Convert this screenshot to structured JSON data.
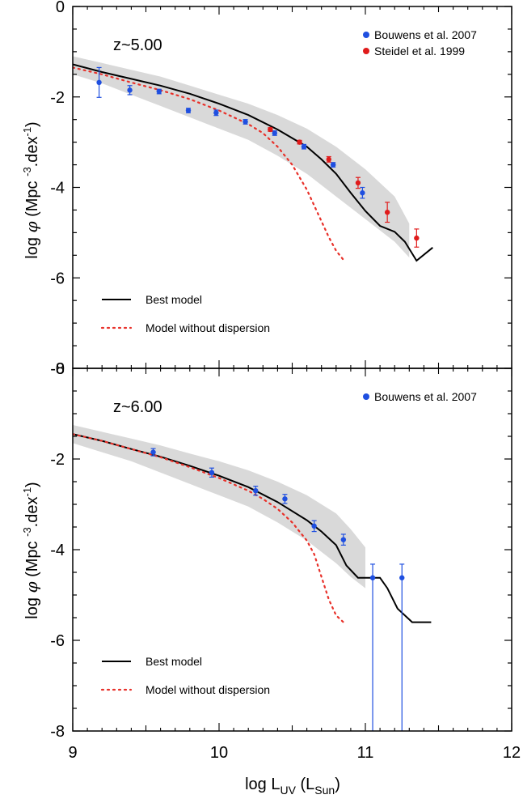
{
  "figure": {
    "xlabel": {
      "main": "log L",
      "sub1": "UV",
      "mid": " (L",
      "sub2": "Sun",
      "end": ")"
    },
    "ylabel": {
      "pre": "log ",
      "phi": "φ",
      "mid": " (Mpc ",
      "sup": "-3",
      "post": ".dex",
      "sup2": "-1",
      "end": ")"
    }
  },
  "colors": {
    "band": "#d9d9d9",
    "best_model": "#000000",
    "no_dispersion": "#e8312a",
    "bouwens": "#1f4fe0",
    "steidel": "#e01b1b"
  },
  "chart_data": [
    {
      "type": "line",
      "panel_label": "z~5.00",
      "xlim": [
        9,
        12
      ],
      "ylim": [
        -8,
        0
      ],
      "x_ticks": [
        9,
        10,
        11,
        12
      ],
      "y_ticks": [
        -8,
        -6,
        -4,
        -2,
        0
      ],
      "legend": [
        {
          "label": "Bouwens et al. 2007",
          "kind": "point",
          "color_key": "bouwens"
        },
        {
          "label": "Steidel et al. 1999",
          "kind": "point",
          "color_key": "steidel"
        }
      ],
      "line_legend": [
        {
          "label": "Best model",
          "kind": "solid",
          "color_key": "best_model"
        },
        {
          "label": "Model without dispersion",
          "kind": "dotted",
          "color_key": "no_dispersion"
        }
      ],
      "band": {
        "x": [
          9.0,
          9.2,
          9.4,
          9.6,
          9.8,
          10.0,
          10.2,
          10.4,
          10.6,
          10.8,
          11.0,
          11.2,
          11.3
        ],
        "upper": [
          -1.1,
          -1.25,
          -1.4,
          -1.55,
          -1.75,
          -1.95,
          -2.15,
          -2.4,
          -2.7,
          -3.1,
          -3.6,
          -4.2,
          -4.8
        ],
        "lower": [
          -1.5,
          -1.7,
          -1.95,
          -2.2,
          -2.45,
          -2.7,
          -2.95,
          -3.3,
          -3.7,
          -4.2,
          -4.7,
          -5.2,
          -5.55
        ]
      },
      "series": [
        {
          "name": "Best model",
          "style": "solid",
          "x": [
            9.0,
            9.2,
            9.4,
            9.6,
            9.8,
            10.0,
            10.2,
            10.4,
            10.6,
            10.7,
            10.8,
            10.9,
            11.0,
            11.1,
            11.2,
            11.27,
            11.35,
            11.46
          ],
          "y": [
            -1.28,
            -1.45,
            -1.6,
            -1.75,
            -1.93,
            -2.15,
            -2.4,
            -2.72,
            -3.1,
            -3.38,
            -3.7,
            -4.12,
            -4.52,
            -4.85,
            -4.98,
            -5.2,
            -5.62,
            -5.33
          ]
        },
        {
          "name": "Model without dispersion",
          "style": "dotted",
          "x": [
            9.0,
            9.2,
            9.4,
            9.6,
            9.8,
            10.0,
            10.2,
            10.3,
            10.4,
            10.5,
            10.6,
            10.65,
            10.7,
            10.75,
            10.8,
            10.85
          ],
          "y": [
            -1.35,
            -1.5,
            -1.68,
            -1.85,
            -2.05,
            -2.3,
            -2.6,
            -2.8,
            -3.1,
            -3.5,
            -4.05,
            -4.4,
            -4.75,
            -5.1,
            -5.4,
            -5.6
          ]
        }
      ],
      "points": [
        {
          "name": "Bouwens et al. 2007",
          "color_key": "bouwens",
          "x": [
            9.18,
            9.39,
            9.59,
            9.79,
            9.98,
            10.18,
            10.38,
            10.58,
            10.78,
            10.98
          ],
          "y": [
            -1.68,
            -1.85,
            -1.88,
            -2.3,
            -2.35,
            -2.55,
            -2.8,
            -3.1,
            -3.5,
            -4.12
          ],
          "err": [
            0.33,
            0.1,
            0.05,
            0.05,
            0.06,
            0.05,
            0.05,
            0.05,
            0.05,
            0.12
          ]
        },
        {
          "name": "Steidel et al. 1999",
          "color_key": "steidel",
          "x": [
            10.35,
            10.55,
            10.75,
            10.95,
            11.15,
            11.35
          ],
          "y": [
            -2.72,
            -3.0,
            -3.38,
            -3.9,
            -4.55,
            -5.12
          ],
          "err": [
            0.04,
            0.04,
            0.06,
            0.12,
            0.22,
            0.2
          ]
        }
      ]
    },
    {
      "type": "line",
      "panel_label": "z~6.00",
      "xlim": [
        9,
        12
      ],
      "ylim": [
        -8,
        0
      ],
      "x_ticks": [
        9,
        10,
        11,
        12
      ],
      "y_ticks": [
        -8,
        -6,
        -4,
        -2,
        0
      ],
      "legend": [
        {
          "label": "Bouwens et al. 2007",
          "kind": "point",
          "color_key": "bouwens"
        }
      ],
      "line_legend": [
        {
          "label": "Best model",
          "kind": "solid",
          "color_key": "best_model"
        },
        {
          "label": "Model without dispersion",
          "kind": "dotted",
          "color_key": "no_dispersion"
        }
      ],
      "band": {
        "x": [
          9.0,
          9.2,
          9.4,
          9.6,
          9.8,
          10.0,
          10.2,
          10.4,
          10.6,
          10.8,
          10.9,
          11.0
        ],
        "upper": [
          -1.25,
          -1.4,
          -1.55,
          -1.7,
          -1.88,
          -2.05,
          -2.25,
          -2.5,
          -2.8,
          -3.2,
          -3.55,
          -3.95
        ],
        "lower": [
          -1.65,
          -1.85,
          -2.05,
          -2.3,
          -2.55,
          -2.8,
          -3.05,
          -3.4,
          -3.8,
          -4.3,
          -4.6,
          -4.85
        ]
      },
      "series": [
        {
          "name": "Best model",
          "style": "solid",
          "x": [
            9.0,
            9.2,
            9.4,
            9.6,
            9.8,
            10.0,
            10.2,
            10.4,
            10.6,
            10.7,
            10.8,
            10.87,
            10.95,
            11.0,
            11.1,
            11.15,
            11.22,
            11.32,
            11.45
          ],
          "y": [
            -1.45,
            -1.6,
            -1.78,
            -1.95,
            -2.15,
            -2.37,
            -2.62,
            -2.95,
            -3.35,
            -3.6,
            -3.9,
            -4.35,
            -4.62,
            -4.62,
            -4.62,
            -4.85,
            -5.3,
            -5.6,
            -5.6
          ]
        },
        {
          "name": "Model without dispersion",
          "style": "dotted",
          "x": [
            9.0,
            9.2,
            9.4,
            9.6,
            9.8,
            10.0,
            10.2,
            10.3,
            10.4,
            10.5,
            10.6,
            10.65,
            10.7,
            10.75,
            10.8,
            10.85
          ],
          "y": [
            -1.45,
            -1.6,
            -1.78,
            -1.96,
            -2.18,
            -2.42,
            -2.7,
            -2.88,
            -3.1,
            -3.4,
            -3.8,
            -4.1,
            -4.6,
            -5.1,
            -5.45,
            -5.6
          ]
        }
      ],
      "points": [
        {
          "name": "Bouwens et al. 2007",
          "color_key": "bouwens",
          "x": [
            9.55,
            9.95,
            10.25,
            10.45,
            10.65,
            10.85,
            11.05,
            11.25
          ],
          "y": [
            -1.85,
            -2.3,
            -2.7,
            -2.88,
            -3.48,
            -3.78,
            -4.62,
            -4.62
          ],
          "err_up": [
            0.08,
            0.1,
            0.1,
            0.1,
            0.12,
            0.12,
            0.3,
            0.3
          ],
          "err_down": [
            0.08,
            0.1,
            0.1,
            0.1,
            0.12,
            0.12,
            3.38,
            3.38
          ]
        }
      ]
    }
  ]
}
